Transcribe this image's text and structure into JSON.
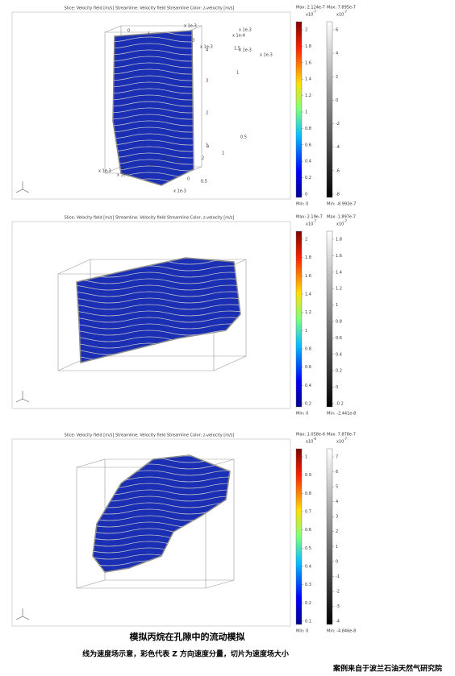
{
  "panels": [
    {
      "header": "Slice: Velocity field [m/s]   Streamline: Velocity field   Streamline Color: z-velocity [m/s]",
      "colorbars": [
        {
          "max": "Max: 2.124e-7",
          "base": "x10",
          "power": "-7",
          "ticks": [
            "2",
            "1.8",
            "1.6",
            "1.4",
            "1.2",
            "1",
            "0.8",
            "0.6",
            "0.4",
            "0.2",
            "0"
          ],
          "min": "Min: 0"
        },
        {
          "max": "Max: 7.895e-7",
          "base": "x10",
          "power": "-7",
          "ticks": [
            "6",
            "4",
            "2",
            "0",
            "-2",
            "-4",
            "-6",
            "-8"
          ],
          "min": "Min: -8.992e-7"
        }
      ],
      "axis_labels": [
        "x 1e-3",
        "0",
        "1",
        "2",
        "3",
        "x 1e-3",
        "4",
        "3",
        "2",
        "1",
        "0",
        "0.5",
        "x 1e-3"
      ]
    },
    {
      "header": "Slice: Velocity field [m/s]   Streamline: Velocity field   Streamline Color: z-velocity [m/s]",
      "colorbars": [
        {
          "max": "Max: 2.19e-7",
          "base": "x10",
          "power": "-7",
          "ticks": [
            "2",
            "1.8",
            "1.6",
            "1.4",
            "1.2",
            "1",
            "0.8",
            "0.6",
            "0.4",
            "0.2"
          ],
          "min": "Min: 0"
        },
        {
          "max": "Max: 1.897e-7",
          "base": "x10",
          "power": "-7",
          "ticks": [
            "1.8",
            "1.6",
            "1.4",
            "1.2",
            "1",
            "0.8",
            "0.6",
            "0.4",
            "0.2",
            "0",
            "-0.2"
          ],
          "min": "Min: -2.441e-8"
        }
      ],
      "axis_labels": [
        "x 1e-4",
        "x 1e-3",
        "1.5",
        "1",
        "0.5",
        "0",
        "1",
        "0.5",
        "x 1e-3"
      ]
    },
    {
      "header": "Slice: Velocity field [m/s]   Streamline: Velocity field   Streamline Color: z-velocity [m/s]",
      "colorbars": [
        {
          "max": "Max: 1.058e-6",
          "base": "x10",
          "power": "-6",
          "ticks": [
            "1",
            "0.9",
            "0.8",
            "0.7",
            "0.6",
            "0.5",
            "0.4",
            "0.3",
            "0.2",
            "0.1"
          ],
          "min": "Min: 0"
        },
        {
          "max": "Max: 7.878e-7",
          "base": "x10",
          "power": "-7",
          "ticks": [
            "7",
            "6",
            "5",
            "4",
            "3",
            "2",
            "1",
            "0",
            "-1",
            "-2",
            "-3",
            "-4"
          ],
          "min": "Min: -4.846e-8"
        }
      ],
      "axis_labels": [
        "x 1e-3",
        "x 1e-3",
        "5",
        "4",
        "3",
        "2",
        "1",
        "x 1e-3"
      ]
    }
  ],
  "caption": {
    "title": "模拟丙烷在孔隙中的流动模拟",
    "subtitle": "线为速度场示意，彩色代表 Z 方向速度分量，切片为速度场大小",
    "source": "案例来自于波兰石油天然气研究院"
  }
}
